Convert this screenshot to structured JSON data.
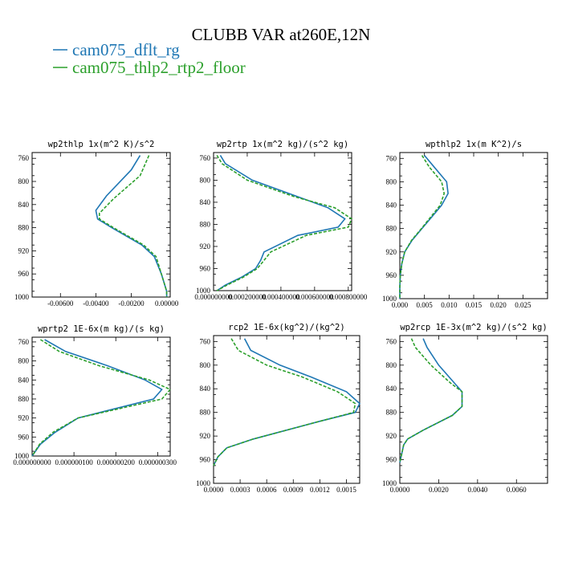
{
  "figure": {
    "title": "CLUBB VAR at260E,12N",
    "legend": [
      {
        "label": "cam075_dflt_rg",
        "color": "#1f77b4"
      },
      {
        "label": "cam075_thlp2_rtp2_floor",
        "color": "#2ca02c"
      }
    ]
  },
  "chart_data": [
    {
      "type": "line",
      "title": "wp2thlp   1x(m^2 K)/s^2",
      "xlim": [
        -0.0076,
        0.0002
      ],
      "ylim": [
        1000,
        750
      ],
      "xticks": [
        -0.006,
        -0.004,
        -0.002,
        0.0
      ],
      "xticklabels": [
        "-0.00600",
        "-0.00400",
        "-0.00200",
        "0.00000"
      ],
      "yticks": [
        760,
        800,
        840,
        880,
        920,
        960,
        1000
      ],
      "yticklabels": [
        "760",
        "800",
        "840",
        "880",
        "920",
        "960",
        "1000"
      ],
      "series": [
        {
          "name": "cam075_dflt_rg",
          "color": "#1f77b4",
          "dash": "",
          "y": [
            755,
            780,
            825,
            850,
            865,
            880,
            910,
            930,
            960,
            990,
            1000
          ],
          "x": [
            -0.0015,
            -0.002,
            -0.0034,
            -0.004,
            -0.0039,
            -0.0031,
            -0.0014,
            -0.0007,
            -0.0003,
            0.0,
            0.0
          ]
        },
        {
          "name": "cam075_thlp2_rtp2_floor",
          "color": "#2ca02c",
          "dash": "4,2",
          "y": [
            755,
            790,
            830,
            855,
            865,
            880,
            910,
            930,
            960,
            990,
            1000
          ],
          "x": [
            -0.001,
            -0.0015,
            -0.003,
            -0.0038,
            -0.0038,
            -0.003,
            -0.0013,
            -0.0006,
            -0.0003,
            0.0,
            0.0
          ]
        }
      ]
    },
    {
      "type": "line",
      "title": "wp2rtp   1x(m^2 kg)/(s^2 kg)",
      "xlim": [
        0,
        0.00082
      ],
      "ylim": [
        1000,
        750
      ],
      "xticks": [
        0,
        0.0002,
        0.0004,
        0.0006,
        0.0008
      ],
      "xticklabels": [
        "0.000000000",
        "0.000200000",
        "0.000400000",
        "0.000600000",
        "0.000800000"
      ],
      "yticks": [
        760,
        800,
        840,
        880,
        920,
        960,
        1000
      ],
      "yticklabels": [
        "760",
        "800",
        "840",
        "880",
        "920",
        "960",
        "1000"
      ],
      "series": [
        {
          "name": "cam075_dflt_rg",
          "color": "#1f77b4",
          "dash": "",
          "y": [
            755,
            770,
            800,
            830,
            850,
            870,
            885,
            900,
            930,
            945,
            960,
            975,
            990,
            1000
          ],
          "x": [
            4e-05,
            7e-05,
            0.00023,
            0.0005,
            0.00068,
            0.00078,
            0.00074,
            0.0005,
            0.0003,
            0.00028,
            0.00025,
            0.00017,
            7e-05,
            2e-05
          ]
        },
        {
          "name": "cam075_thlp2_rtp2_floor",
          "color": "#2ca02c",
          "dash": "4,2",
          "y": [
            755,
            770,
            800,
            830,
            850,
            870,
            885,
            900,
            930,
            945,
            960,
            975,
            990,
            1000
          ],
          "x": [
            2e-05,
            5e-05,
            0.0002,
            0.00048,
            0.00072,
            0.00082,
            0.0008,
            0.00055,
            0.00034,
            0.0003,
            0.00026,
            0.00018,
            8e-05,
            2e-05
          ]
        }
      ]
    },
    {
      "type": "line",
      "title": "wpthlp2   1x(m K^2)/s",
      "xlim": [
        0,
        0.03
      ],
      "ylim": [
        1000,
        750
      ],
      "xticks": [
        0,
        0.005,
        0.01,
        0.015,
        0.02,
        0.025
      ],
      "xticklabels": [
        "0.000",
        "0.005",
        "0.010",
        "0.015",
        "0.020",
        "0.025"
      ],
      "yticks": [
        760,
        800,
        840,
        880,
        920,
        960,
        1000
      ],
      "yticklabels": [
        "760",
        "800",
        "840",
        "880",
        "920",
        "960",
        "1000"
      ],
      "series": [
        {
          "name": "cam075_dflt_rg",
          "color": "#1f77b4",
          "dash": "",
          "y": [
            755,
            775,
            800,
            820,
            840,
            860,
            880,
            900,
            920,
            940,
            960,
            980,
            1000
          ],
          "x": [
            0.005,
            0.007,
            0.0095,
            0.0098,
            0.0085,
            0.0065,
            0.0045,
            0.0025,
            0.001,
            0.0004,
            0.0001,
            0.0,
            0.0
          ]
        },
        {
          "name": "cam075_thlp2_rtp2_floor",
          "color": "#2ca02c",
          "dash": "4,2",
          "y": [
            755,
            775,
            800,
            820,
            840,
            860,
            880,
            900,
            920,
            940,
            960,
            980,
            1000
          ],
          "x": [
            0.0045,
            0.006,
            0.0085,
            0.009,
            0.0082,
            0.0063,
            0.0044,
            0.0024,
            0.001,
            0.0004,
            0.0001,
            0.0,
            0.0
          ]
        }
      ]
    },
    {
      "type": "line",
      "title": "wprtp2   1E-6x(m kg)/(s kg)",
      "xlim": [
        0,
        3.3e-07
      ],
      "ylim": [
        1000,
        750
      ],
      "xticks": [
        0,
        1e-07,
        2e-07,
        3e-07
      ],
      "xticklabels": [
        "0.000000000",
        "0.000000100",
        "0.000000200",
        "0.000000300"
      ],
      "yticks": [
        760,
        800,
        840,
        880,
        920,
        960,
        1000
      ],
      "yticklabels": [
        "760",
        "800",
        "840",
        "880",
        "920",
        "960",
        "1000"
      ],
      "series": [
        {
          "name": "cam075_dflt_rg",
          "color": "#1f77b4",
          "dash": "",
          "y": [
            755,
            780,
            810,
            840,
            860,
            880,
            900,
            920,
            950,
            975,
            1000
          ],
          "x": [
            3e-08,
            8e-08,
            1.8e-07,
            2.7e-07,
            3.1e-07,
            2.9e-07,
            2e-07,
            1.1e-07,
            5.5e-08,
            2e-08,
            0.0
          ]
        },
        {
          "name": "cam075_thlp2_rtp2_floor",
          "color": "#2ca02c",
          "dash": "4,2",
          "y": [
            755,
            780,
            810,
            840,
            860,
            880,
            900,
            920,
            950,
            975,
            1000
          ],
          "x": [
            2e-08,
            6.5e-08,
            1.6e-07,
            2.8e-07,
            3.3e-07,
            3.1e-07,
            2.1e-07,
            1.1e-07,
            5e-08,
            1.8e-08,
            0.0
          ]
        }
      ]
    },
    {
      "type": "line",
      "title": "rcp2   1E-6x(kg^2)/(kg^2)",
      "xlim": [
        0,
        0.00165
      ],
      "ylim": [
        1000,
        750
      ],
      "xticks": [
        0,
        0.0003,
        0.0006,
        0.0009,
        0.0012,
        0.0015
      ],
      "xticklabels": [
        "0.0000",
        "0.0003",
        "0.0006",
        "0.0009",
        "0.0012",
        "0.0015"
      ],
      "yticks": [
        760,
        800,
        840,
        880,
        920,
        960,
        1000
      ],
      "yticklabels": [
        "760",
        "800",
        "840",
        "880",
        "920",
        "960",
        "1000"
      ],
      "series": [
        {
          "name": "cam075_dflt_rg",
          "color": "#1f77b4",
          "dash": "",
          "y": [
            755,
            775,
            800,
            820,
            845,
            865,
            880,
            895,
            925,
            940,
            955,
            970
          ],
          "x": [
            0.00035,
            0.00042,
            0.00075,
            0.0011,
            0.0015,
            0.00165,
            0.0016,
            0.0012,
            0.00045,
            0.00015,
            5e-05,
            0.0
          ]
        },
        {
          "name": "cam075_thlp2_rtp2_floor",
          "color": "#2ca02c",
          "dash": "4,2",
          "y": [
            755,
            775,
            800,
            820,
            845,
            865,
            880,
            895,
            925,
            940,
            955,
            970
          ],
          "x": [
            0.0002,
            0.00028,
            0.0006,
            0.001,
            0.0014,
            0.0016,
            0.00158,
            0.0012,
            0.00045,
            0.00015,
            5e-05,
            0.0
          ]
        }
      ]
    },
    {
      "type": "line",
      "title": "wp2rcp   1E-3x(m^2 kg)/(s^2 kg)",
      "xlim": [
        0,
        0.0076
      ],
      "ylim": [
        1000,
        750
      ],
      "xticks": [
        0,
        0.002,
        0.004,
        0.006
      ],
      "xticklabels": [
        "0.0000",
        "0.0020",
        "0.0040",
        "0.0060"
      ],
      "yticks": [
        760,
        800,
        840,
        880,
        920,
        960,
        1000
      ],
      "yticklabels": [
        "760",
        "800",
        "840",
        "880",
        "920",
        "960",
        "1000"
      ],
      "series": [
        {
          "name": "cam075_dflt_rg",
          "color": "#1f77b4",
          "dash": "",
          "y": [
            755,
            770,
            800,
            830,
            845,
            870,
            885,
            910,
            925,
            935,
            950,
            965
          ],
          "x": [
            0.0012,
            0.0014,
            0.002,
            0.0028,
            0.0032,
            0.0032,
            0.0027,
            0.0012,
            0.0004,
            0.0002,
            0.0001,
            0.0
          ]
        },
        {
          "name": "cam075_thlp2_rtp2_floor",
          "color": "#2ca02c",
          "dash": "4,2",
          "y": [
            755,
            770,
            800,
            830,
            845,
            870,
            885,
            910,
            925,
            935,
            950,
            965
          ],
          "x": [
            0.0006,
            0.0008,
            0.0016,
            0.0026,
            0.0032,
            0.0032,
            0.0027,
            0.0012,
            0.0004,
            0.0002,
            0.0001,
            0.0
          ]
        }
      ]
    }
  ]
}
